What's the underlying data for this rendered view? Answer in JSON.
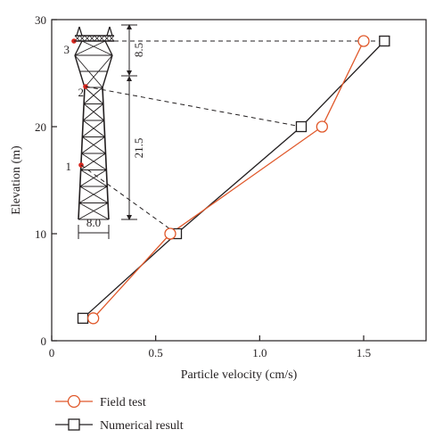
{
  "chart_data": {
    "type": "line",
    "xlabel": "Particle velocity (cm/s)",
    "ylabel": "Elevation (m)",
    "xlim": [
      0,
      1.8
    ],
    "ylim": [
      0,
      30
    ],
    "x_ticks": [
      0,
      0.5,
      1.0,
      1.5
    ],
    "x_tick_labels": [
      "0",
      "0.5",
      "1.0",
      "1.5"
    ],
    "y_ticks": [
      0,
      10,
      20,
      30
    ],
    "y_tick_labels": [
      "0",
      "10",
      "20",
      "30"
    ],
    "grid": false,
    "legend_position": "bottom-left, below plot",
    "series": [
      {
        "name": "Field test",
        "marker": "circle",
        "color": "#e0582a",
        "points": [
          {
            "x": 0.2,
            "y": 2.1
          },
          {
            "x": 0.57,
            "y": 10.0
          },
          {
            "x": 1.3,
            "y": 20.0
          },
          {
            "x": 1.5,
            "y": 28.0
          }
        ]
      },
      {
        "name": "Numerical result",
        "marker": "square",
        "color": "#231f20",
        "points": [
          {
            "x": 0.15,
            "y": 2.1
          },
          {
            "x": 0.6,
            "y": 10.0
          },
          {
            "x": 1.2,
            "y": 20.0
          },
          {
            "x": 1.6,
            "y": 28.0
          }
        ]
      }
    ],
    "inset": {
      "description": "transmission tower schematic",
      "point_labels": [
        "1",
        "2",
        "3"
      ],
      "point_color": "#d7261e",
      "dimension_labels": {
        "height_lower": "21.5",
        "height_upper": "8.5",
        "base_width": "8.0"
      }
    }
  }
}
